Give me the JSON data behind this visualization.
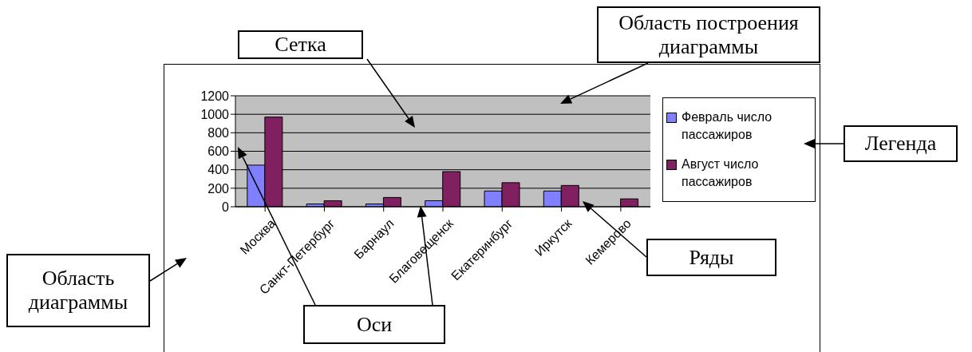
{
  "chart_data": {
    "type": "bar",
    "categories": [
      "Москва",
      "Санкт-Петербург",
      "Барнаул",
      "Благовещенск",
      "Екатеринбург",
      "Иркутск",
      "Кемерово"
    ],
    "series": [
      {
        "name": "Февраль число пассажиров",
        "color": "#8080ff",
        "values": [
          450,
          30,
          30,
          65,
          170,
          170,
          0
        ]
      },
      {
        "name": "Август число пассажиров",
        "color": "#802060",
        "values": [
          970,
          65,
          100,
          380,
          260,
          230,
          85
        ]
      }
    ],
    "ylim": [
      0,
      1200
    ],
    "yticks": [
      0,
      200,
      400,
      600,
      800,
      1000,
      1200
    ],
    "grid": "y",
    "legend": "right",
    "annotations": [
      "Область построения диаграммы",
      "Сетка",
      "Легенда",
      "Ряды",
      "Оси",
      "Область диаграммы"
    ]
  }
}
